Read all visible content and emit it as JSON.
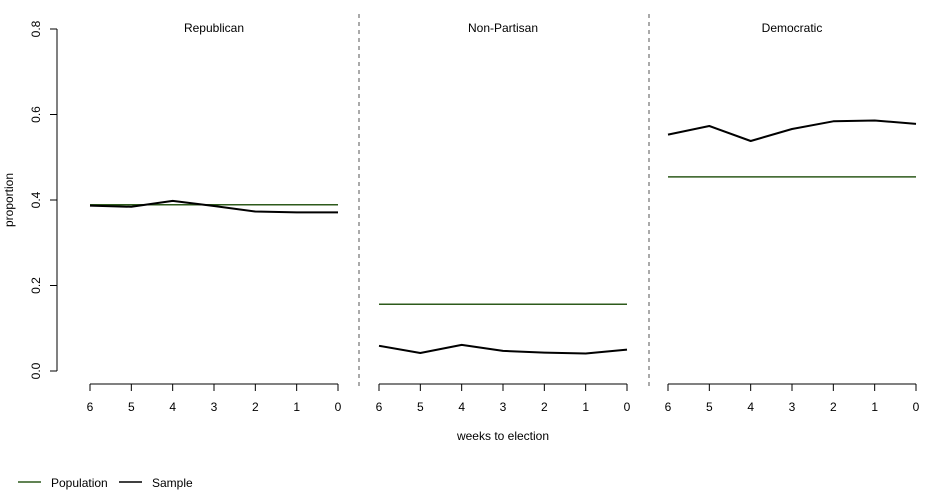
{
  "chart_data": {
    "type": "line",
    "xlabel": "weeks to election",
    "ylabel": "proportion",
    "ylim": [
      0,
      0.8
    ],
    "y_ticks": [
      "0.0",
      "0.2",
      "0.4",
      "0.6",
      "0.8"
    ],
    "x_ticks": [
      "6",
      "5",
      "4",
      "3",
      "2",
      "1",
      "0"
    ],
    "x": [
      6,
      5,
      4,
      3,
      2,
      1,
      0
    ],
    "grid": false,
    "legend_position": "bottom-left",
    "colors": {
      "population": "#2d5a1b",
      "sample": "#000000",
      "divider": "#555555"
    },
    "legend": [
      {
        "name": "Population",
        "color": "#2d5a1b"
      },
      {
        "name": "Sample",
        "color": "#000000"
      }
    ],
    "panels": [
      {
        "title": "Republican",
        "series": [
          {
            "name": "Population",
            "values": [
              0.389,
              0.389,
              0.389,
              0.389,
              0.389,
              0.389,
              0.389
            ]
          },
          {
            "name": "Sample",
            "values": [
              0.387,
              0.384,
              0.398,
              0.386,
              0.373,
              0.371,
              0.371
            ]
          }
        ]
      },
      {
        "title": "Non-Partisan",
        "series": [
          {
            "name": "Population",
            "values": [
              0.156,
              0.156,
              0.156,
              0.156,
              0.156,
              0.156,
              0.156
            ]
          },
          {
            "name": "Sample",
            "values": [
              0.059,
              0.042,
              0.061,
              0.047,
              0.043,
              0.041,
              0.05
            ]
          }
        ]
      },
      {
        "title": "Democratic",
        "series": [
          {
            "name": "Population",
            "values": [
              0.454,
              0.454,
              0.454,
              0.454,
              0.454,
              0.454,
              0.454
            ]
          },
          {
            "name": "Sample",
            "values": [
              0.553,
              0.573,
              0.538,
              0.566,
              0.584,
              0.586,
              0.578
            ]
          }
        ]
      }
    ]
  }
}
